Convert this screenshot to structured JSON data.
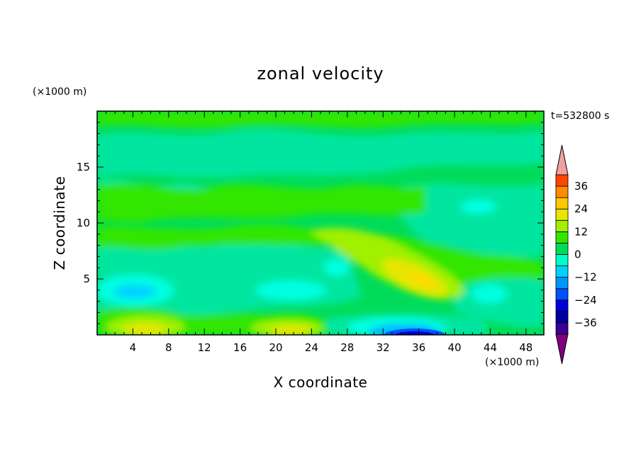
{
  "chart_data": {
    "type": "heatmap",
    "title": "zonal velocity",
    "xlabel": "X coordinate",
    "ylabel": "Z coordinate",
    "x_unit": "(×1000 m)",
    "y_unit": "(×1000 m)",
    "time_label": "t=532800 s",
    "xlim": [
      0,
      50
    ],
    "ylim": [
      0,
      20
    ],
    "x_ticks": [
      4,
      8,
      12,
      16,
      20,
      24,
      28,
      32,
      36,
      40,
      44,
      48
    ],
    "y_ticks": [
      5,
      10,
      15
    ],
    "colorbar": {
      "labels": [
        36,
        24,
        12,
        0,
        -12,
        -24,
        -36
      ],
      "levels": [
        -42,
        -36,
        -30,
        -24,
        -18,
        -12,
        -6,
        0,
        6,
        12,
        18,
        24,
        30,
        36,
        42
      ],
      "colors": [
        "#7f007f",
        "#3c0096",
        "#0000a0",
        "#0000dc",
        "#0050ff",
        "#0096ff",
        "#00d2ff",
        "#00ffc8",
        "#00dc5a",
        "#32e600",
        "#a0f000",
        "#e6e600",
        "#ffc800",
        "#ff8c00",
        "#ff4600",
        "#e60000",
        "#f0a0a0"
      ]
    },
    "features": [
      {
        "x": 35,
        "z": 0.2,
        "value": -36,
        "note": "strong negative core near surface"
      },
      {
        "x": 36,
        "z": 5.0,
        "value": 20,
        "note": "positive maximum"
      },
      {
        "x": 5,
        "z": 0.8,
        "value": 14
      },
      {
        "x": 20,
        "z": 0.6,
        "value": 12
      },
      {
        "x": 6,
        "z": 4.3,
        "value": -12
      },
      {
        "x": 21,
        "z": 4.5,
        "value": -10
      },
      {
        "x": 45,
        "z": 4.5,
        "value": -7
      }
    ]
  }
}
